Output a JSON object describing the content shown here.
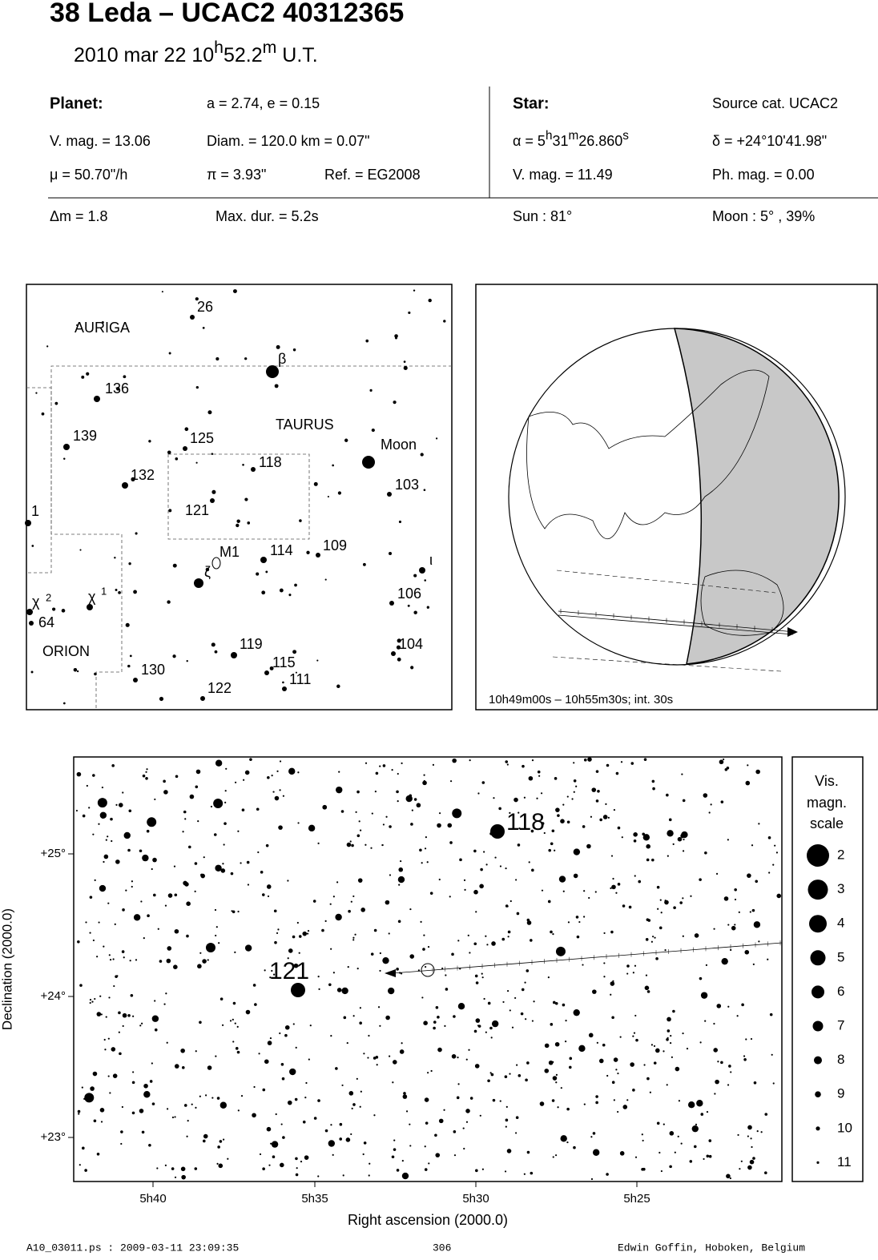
{
  "header": {
    "title": "38 Leda  –  UCAC2 40312365",
    "date": [
      "2010 mar 22  10",
      "h",
      "52.2",
      "m",
      " U.T."
    ]
  },
  "planet": {
    "label": "Planet:",
    "orbit": "a = 2.74, e = 0.15",
    "vmag": "V. mag. = 13.06",
    "diam": "Diam. = 120.0 km = 0.07\"",
    "mu": "μ =  50.70\"/h",
    "pi": "π =  3.93\"",
    "ref": "Ref. = EG2008"
  },
  "star": {
    "label": "Star:",
    "source": "Source cat.  UCAC2",
    "alpha": [
      "α =  5",
      "h",
      "31",
      "m",
      "26.860",
      "s"
    ],
    "delta": "δ = +24°10'41.98\"",
    "vmag": "V. mag. = 11.49",
    "phmag": "Ph. mag. =  0.00"
  },
  "event": {
    "dm": "Δm = 1.8",
    "maxdur": "Max. dur. = 5.2s",
    "sun": "Sun :  81°",
    "moon": "Moon :   5° , 39%"
  },
  "finder": {
    "labels": [
      "AURIGA",
      "TAURUS",
      "ORION",
      "26",
      "136",
      "139",
      "125",
      "118",
      "132",
      "121",
      "1",
      "M1",
      "114",
      "109",
      "ζ",
      "β",
      "Moon",
      "103",
      "ι",
      "106",
      "χ",
      "2",
      "χ",
      "1",
      "64",
      "119",
      "115",
      "111",
      "104",
      "130",
      "122"
    ]
  },
  "globe": {
    "caption": "10h49m00s – 10h55m30s; int. 30s"
  },
  "detail": {
    "labels": [
      "118",
      "121"
    ],
    "xticks": [
      "5h40",
      "5h35",
      "5h30",
      "5h25"
    ],
    "yticks": [
      "+25°",
      "+24°",
      "+23°"
    ],
    "xlabel": "Right ascension (2000.0)",
    "ylabel": "Declination (2000.0)",
    "legend": {
      "title": [
        "Vis.",
        "magn.",
        "scale"
      ],
      "mags": [
        2,
        3,
        4,
        5,
        6,
        7,
        8,
        9,
        10,
        11
      ]
    }
  },
  "footer": {
    "file": "A10_03011.ps : 2009-03-11 23:09:35",
    "page": "306",
    "author": "Edwin Goffin, Hoboken, Belgium"
  }
}
